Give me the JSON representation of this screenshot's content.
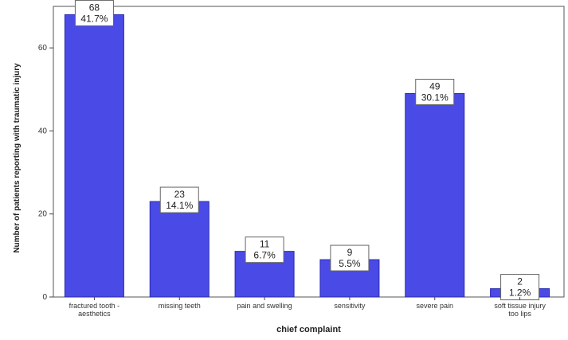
{
  "chart_data": {
    "type": "bar",
    "title": "",
    "xlabel": "chief complaint",
    "ylabel": "Number of patients reporting with traumatic injury",
    "ylim": [
      0,
      70
    ],
    "yticks": [
      0,
      20,
      40,
      60
    ],
    "grid": false,
    "categories": [
      [
        "fractured tooth -",
        "aesthetics"
      ],
      [
        "missing teeth"
      ],
      [
        "pain and swelling"
      ],
      [
        "sensitivity"
      ],
      [
        "severe pain"
      ],
      [
        "soft tissue injury",
        "too lips"
      ]
    ],
    "values": [
      68,
      23,
      11,
      9,
      49,
      2
    ],
    "percent_labels": [
      "41.7%",
      "14.1%",
      "6.7%",
      "5.5%",
      "30.1%",
      "1.2%"
    ],
    "bar_color": "#4a4ae6",
    "bar_stroke": "#2a2ab0"
  }
}
